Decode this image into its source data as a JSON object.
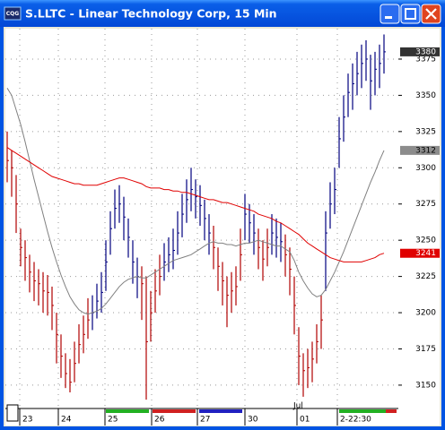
{
  "chart_data": {
    "type": "ohlc",
    "title": "S.LLTC - Linear Technology Corp, 15 Min",
    "icon_label": "CQG",
    "xlim": [
      -0.4,
      87.2
    ],
    "ylim": [
      3134.5,
      3396
    ],
    "yticks": [
      3150,
      3175,
      3200,
      3225,
      3250,
      3275,
      3300,
      3325,
      3350,
      3375
    ],
    "xticks": [
      {
        "value": 2.8,
        "label": "23"
      },
      {
        "value": 11.4,
        "label": "24"
      },
      {
        "value": 21.8,
        "label": "25"
      },
      {
        "value": 32.2,
        "label": "26"
      },
      {
        "value": 42.4,
        "label": "27"
      },
      {
        "value": 53,
        "label": "30"
      },
      {
        "value": 64.6,
        "label": "01"
      },
      {
        "value": 73.6,
        "label": "2-22:30"
      }
    ],
    "month_label": {
      "value": 64.6,
      "label": "Jul"
    },
    "grid": true,
    "up_color": "#00007f",
    "down_color": "#b00000",
    "high": [
      3325,
      3312,
      3295,
      3258,
      3250,
      3240,
      3235,
      3230,
      3228,
      3226,
      3218,
      3200,
      3185,
      3172,
      3168,
      3180,
      3192,
      3198,
      3210,
      3212,
      3220,
      3228,
      3250,
      3270,
      3285,
      3288,
      3280,
      3265,
      3250,
      3238,
      3232,
      3225,
      3215,
      3230,
      3240,
      3248,
      3252,
      3258,
      3270,
      3282,
      3292,
      3300,
      3292,
      3288,
      3278,
      3268,
      3260,
      3245,
      3235,
      3225,
      3228,
      3232,
      3258,
      3282,
      3275,
      3268,
      3258,
      3250,
      3258,
      3268,
      3265,
      3262,
      3254,
      3245,
      3225,
      3190,
      3172,
      3175,
      3180,
      3192,
      3212,
      3270,
      3290,
      3300,
      3335,
      3350,
      3365,
      3372,
      3380,
      3385,
      3388,
      3378,
      3380,
      3385,
      3392
    ],
    "low": [
      3290,
      3280,
      3255,
      3232,
      3222,
      3214,
      3208,
      3205,
      3200,
      3198,
      3188,
      3165,
      3155,
      3148,
      3145,
      3152,
      3165,
      3172,
      3182,
      3188,
      3196,
      3200,
      3215,
      3240,
      3258,
      3262,
      3250,
      3238,
      3220,
      3210,
      3195,
      3140,
      3180,
      3200,
      3212,
      3222,
      3228,
      3230,
      3240,
      3252,
      3262,
      3270,
      3265,
      3260,
      3250,
      3240,
      3230,
      3215,
      3205,
      3190,
      3200,
      3205,
      3222,
      3250,
      3248,
      3240,
      3230,
      3222,
      3232,
      3240,
      3238,
      3235,
      3225,
      3212,
      3185,
      3150,
      3142,
      3148,
      3152,
      3165,
      3175,
      3215,
      3258,
      3268,
      3300,
      3318,
      3335,
      3340,
      3350,
      3355,
      3360,
      3340,
      3350,
      3355,
      3365
    ],
    "close": [
      3305,
      3300,
      3275,
      3245,
      3238,
      3228,
      3222,
      3220,
      3215,
      3214,
      3205,
      3185,
      3170,
      3158,
      3152,
      3165,
      3178,
      3185,
      3195,
      3200,
      3208,
      3214,
      3235,
      3258,
      3272,
      3275,
      3266,
      3252,
      3235,
      3225,
      3220,
      3180,
      3200,
      3215,
      3225,
      3235,
      3240,
      3243,
      3255,
      3268,
      3278,
      3285,
      3280,
      3274,
      3265,
      3255,
      3245,
      3232,
      3222,
      3212,
      3215,
      3218,
      3240,
      3268,
      3262,
      3255,
      3245,
      3237,
      3245,
      3255,
      3252,
      3249,
      3240,
      3230,
      3205,
      3170,
      3160,
      3162,
      3168,
      3180,
      3195,
      3255,
      3275,
      3285,
      3320,
      3335,
      3352,
      3358,
      3365,
      3372,
      3375,
      3360,
      3368,
      3372,
      3380
    ],
    "lines": [
      {
        "color": "#808080",
        "values": [
          3355,
          3350,
          3340,
          3330,
          3318,
          3305,
          3292,
          3280,
          3268,
          3256,
          3245,
          3235,
          3226,
          3218,
          3211,
          3206,
          3202,
          3200,
          3199,
          3200,
          3201,
          3203,
          3206,
          3210,
          3214,
          3218,
          3221,
          3223,
          3224,
          3225,
          3224,
          3224,
          3226,
          3228,
          3230,
          3232,
          3234,
          3236,
          3237,
          3238,
          3239,
          3240,
          3242,
          3244,
          3246,
          3248,
          3249,
          3248,
          3248,
          3247,
          3247,
          3246,
          3247,
          3248,
          3248,
          3249,
          3250,
          3249,
          3248,
          3247,
          3246,
          3246,
          3244,
          3242,
          3236,
          3228,
          3222,
          3217,
          3213,
          3211,
          3212,
          3216,
          3222,
          3228,
          3235,
          3242,
          3250,
          3258,
          3266,
          3274,
          3282,
          3290,
          3297,
          3305,
          3312
        ]
      },
      {
        "color": "#e00000",
        "values": [
          3314,
          3312,
          3310,
          3308,
          3306,
          3304,
          3302,
          3300,
          3298,
          3296,
          3294,
          3293,
          3292,
          3291,
          3290,
          3289,
          3289,
          3288,
          3288,
          3288,
          3288,
          3289,
          3290,
          3291,
          3292,
          3293,
          3293,
          3292,
          3291,
          3290,
          3289,
          3287,
          3286,
          3286,
          3286,
          3285,
          3285,
          3284,
          3284,
          3283,
          3283,
          3282,
          3281,
          3280,
          3279,
          3278,
          3278,
          3277,
          3276,
          3276,
          3275,
          3274,
          3273,
          3272,
          3271,
          3270,
          3268,
          3267,
          3266,
          3265,
          3263,
          3262,
          3260,
          3258,
          3256,
          3254,
          3251,
          3248,
          3246,
          3244,
          3242,
          3240,
          3238,
          3237,
          3236,
          3235,
          3235,
          3235,
          3235,
          3235,
          3236,
          3237,
          3238,
          3240,
          3241
        ]
      }
    ],
    "price_tags": [
      {
        "value": 3380,
        "color": "#333333",
        "text_color": "#ffffff"
      },
      {
        "value": 3312,
        "color": "#8c8c8c",
        "text_color": "#000000"
      },
      {
        "value": 3241,
        "color": "#e00000",
        "text_color": "#ffffff"
      }
    ]
  }
}
